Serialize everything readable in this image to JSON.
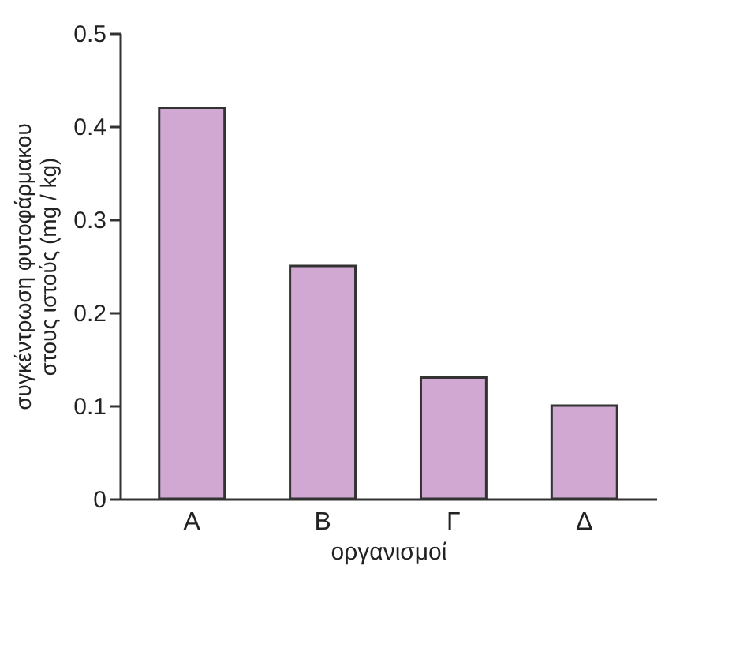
{
  "chart_data": {
    "type": "bar",
    "categories": [
      "Α",
      "Β",
      "Γ",
      "Δ"
    ],
    "values": [
      0.42,
      0.25,
      0.13,
      0.1
    ],
    "color": "#d0a8d2",
    "xlabel": "οργανισμοί",
    "ylabel": "συγκέντρωση φυτοφάρμακου\nστους ιστούς (mg / kg)",
    "ylim": [
      0,
      0.5
    ],
    "yticks": [
      0,
      0.1,
      0.2,
      0.3,
      0.4,
      0.5
    ],
    "grid": false
  }
}
